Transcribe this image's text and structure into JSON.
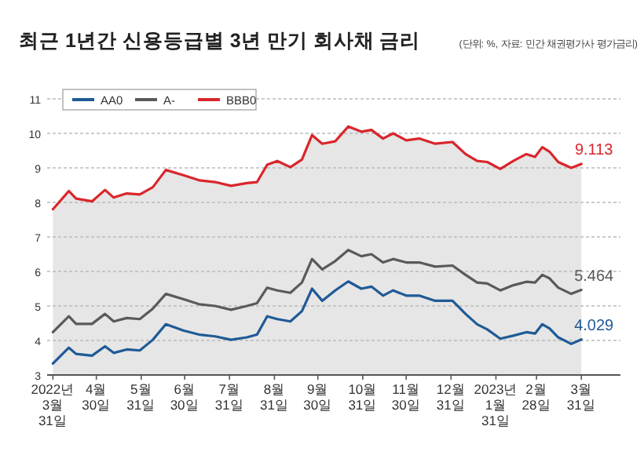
{
  "chart_data": {
    "type": "line",
    "title": "최근 1년간 신용등급별 3년 만기 회사채 금리",
    "subtitle": "(단위: %, 자료: 민간 채권평가사 평가금리)",
    "x": [
      "2022-03-31",
      "2022-04-11",
      "2022-04-16",
      "2022-04-27",
      "2022-05-06",
      "2022-05-12",
      "2022-05-21",
      "2022-05-30",
      "2022-06-08",
      "2022-06-17",
      "2022-06-29",
      "2022-07-10",
      "2022-07-21",
      "2022-08-01",
      "2022-08-12",
      "2022-08-19",
      "2022-08-26",
      "2022-09-02",
      "2022-09-11",
      "2022-09-19",
      "2022-09-26",
      "2022-10-03",
      "2022-10-12",
      "2022-10-21",
      "2022-10-30",
      "2022-11-06",
      "2022-11-14",
      "2022-11-21",
      "2022-11-30",
      "2022-12-09",
      "2022-12-20",
      "2023-01-01",
      "2023-01-10",
      "2023-01-18",
      "2023-01-25",
      "2023-02-03",
      "2023-02-12",
      "2023-02-21",
      "2023-02-27",
      "2023-03-04",
      "2023-03-09",
      "2023-03-15",
      "2023-03-24",
      "2023-03-31"
    ],
    "series": [
      {
        "name": "AA0",
        "color": "#1f5a96",
        "values": [
          3.33,
          3.79,
          3.61,
          3.56,
          3.83,
          3.64,
          3.74,
          3.71,
          4.02,
          4.47,
          4.29,
          4.17,
          4.12,
          4.02,
          4.09,
          4.17,
          4.7,
          4.62,
          4.55,
          4.85,
          5.5,
          5.15,
          5.45,
          5.71,
          5.5,
          5.56,
          5.3,
          5.45,
          5.3,
          5.3,
          5.15,
          5.15,
          4.77,
          4.47,
          4.32,
          4.05,
          4.14,
          4.24,
          4.2,
          4.47,
          4.35,
          4.09,
          3.9,
          4.029
        ],
        "value_labels": [
          null,
          null,
          null,
          null,
          null,
          null,
          null,
          null,
          null,
          null,
          null,
          null,
          null,
          null,
          null,
          null,
          null,
          null,
          null,
          null,
          null,
          null,
          null,
          null,
          null,
          null,
          null,
          null,
          null,
          null,
          null,
          null,
          null,
          null,
          null,
          null,
          null,
          null,
          null,
          null,
          null,
          null,
          null,
          "4.029"
        ]
      },
      {
        "name": "A-",
        "color": "#5a5a5a",
        "values": [
          4.24,
          4.7,
          4.48,
          4.48,
          4.77,
          4.55,
          4.65,
          4.62,
          4.92,
          5.35,
          5.2,
          5.05,
          5.0,
          4.89,
          5.0,
          5.08,
          5.53,
          5.45,
          5.38,
          5.68,
          6.36,
          6.06,
          6.3,
          6.62,
          6.44,
          6.5,
          6.26,
          6.36,
          6.26,
          6.26,
          6.14,
          6.17,
          5.9,
          5.68,
          5.65,
          5.45,
          5.6,
          5.7,
          5.68,
          5.9,
          5.8,
          5.53,
          5.35,
          5.464
        ],
        "value_labels": [
          null,
          null,
          null,
          null,
          null,
          null,
          null,
          null,
          null,
          null,
          null,
          null,
          null,
          null,
          null,
          null,
          null,
          null,
          null,
          null,
          null,
          null,
          null,
          null,
          null,
          null,
          null,
          null,
          null,
          null,
          null,
          null,
          null,
          null,
          null,
          null,
          null,
          null,
          null,
          null,
          null,
          null,
          null,
          "5.464"
        ]
      },
      {
        "name": "BBB0",
        "color": "#d9262c",
        "values": [
          7.8,
          8.33,
          8.11,
          8.03,
          8.36,
          8.14,
          8.26,
          8.23,
          8.44,
          8.94,
          8.79,
          8.64,
          8.59,
          8.48,
          8.56,
          8.59,
          9.09,
          9.2,
          9.02,
          9.24,
          9.95,
          9.7,
          9.77,
          10.2,
          10.05,
          10.1,
          9.85,
          10.0,
          9.8,
          9.85,
          9.7,
          9.75,
          9.4,
          9.2,
          9.17,
          8.97,
          9.2,
          9.4,
          9.32,
          9.6,
          9.47,
          9.17,
          9.0,
          9.113
        ],
        "value_labels": [
          null,
          null,
          null,
          null,
          null,
          null,
          null,
          null,
          null,
          null,
          null,
          null,
          null,
          null,
          null,
          null,
          null,
          null,
          null,
          null,
          null,
          null,
          null,
          null,
          null,
          null,
          null,
          null,
          null,
          null,
          null,
          null,
          null,
          null,
          null,
          null,
          null,
          null,
          null,
          null,
          null,
          null,
          null,
          "9.113"
        ]
      }
    ],
    "xlim": [
      "2022-03-27",
      "2023-04-27"
    ],
    "xticks": [
      {
        "value": "2022-03-31",
        "label": "2022년\n3월\n31일"
      },
      {
        "value": "2022-04-30",
        "label": "4월\n30일"
      },
      {
        "value": "2022-05-31",
        "label": "5월\n31일"
      },
      {
        "value": "2022-06-30",
        "label": "6월\n30일"
      },
      {
        "value": "2022-07-31",
        "label": "7월\n31일"
      },
      {
        "value": "2022-08-31",
        "label": "8월\n31일"
      },
      {
        "value": "2022-09-30",
        "label": "9월\n30일"
      },
      {
        "value": "2022-10-31",
        "label": "10월\n31일"
      },
      {
        "value": "2022-11-30",
        "label": "11월\n30일"
      },
      {
        "value": "2022-12-31",
        "label": "12월\n31일"
      },
      {
        "value": "2023-01-31",
        "label": "2023년\n1월\n31일"
      },
      {
        "value": "2023-02-28",
        "label": "2월\n28일"
      },
      {
        "value": "2023-03-31",
        "label": "3월\n31일"
      }
    ],
    "ylim": [
      3,
      11
    ],
    "yticks": [
      3,
      4,
      5,
      6,
      7,
      8,
      9,
      10,
      11
    ],
    "grid": "y",
    "legend": "top left",
    "marker": "none",
    "line_style": "solid"
  }
}
